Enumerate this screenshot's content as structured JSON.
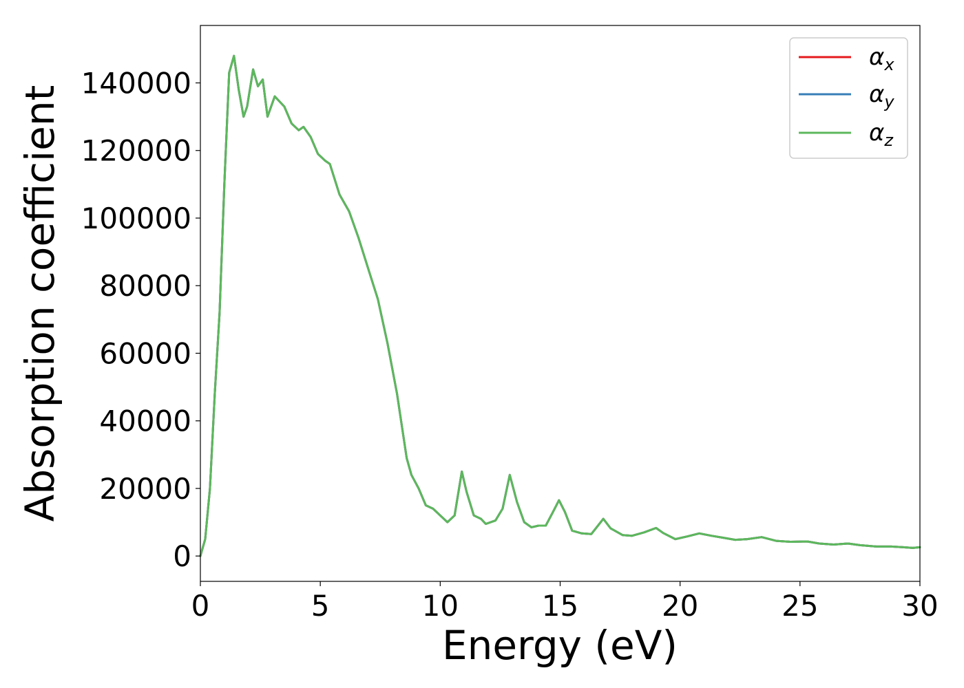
{
  "chart_data": {
    "type": "line",
    "title": "",
    "xlabel": "Energy (eV)",
    "ylabel": "Absorption coefficient",
    "xlim": [
      0,
      30
    ],
    "ylim": [
      -7500,
      157000
    ],
    "xticks": [
      0,
      5,
      10,
      15,
      20,
      25,
      30
    ],
    "xtick_labels": [
      "0",
      "5",
      "10",
      "15",
      "20",
      "25",
      "30"
    ],
    "yticks": [
      0,
      20000,
      40000,
      60000,
      80000,
      100000,
      120000,
      140000
    ],
    "ytick_labels": [
      "0",
      "20000",
      "40000",
      "60000",
      "80000",
      "100000",
      "120000",
      "140000"
    ],
    "grid": false,
    "legend_position": "top-right",
    "x": [
      0,
      0.2,
      0.4,
      0.6,
      0.8,
      1.0,
      1.2,
      1.4,
      1.6,
      1.8,
      1.95,
      2.2,
      2.4,
      2.6,
      2.8,
      3.1,
      3.5,
      3.8,
      4.1,
      4.3,
      4.6,
      4.9,
      5.2,
      5.4,
      5.8,
      6.2,
      6.6,
      7.0,
      7.4,
      7.8,
      8.2,
      8.6,
      8.8,
      9.1,
      9.4,
      9.7,
      10.0,
      10.3,
      10.6,
      10.9,
      11.1,
      11.4,
      11.7,
      11.9,
      12.3,
      12.6,
      12.9,
      13.2,
      13.5,
      13.8,
      14.1,
      14.4,
      14.7,
      14.95,
      15.2,
      15.5,
      15.9,
      16.3,
      16.8,
      17.1,
      17.6,
      18.0,
      18.5,
      19.0,
      19.3,
      19.8,
      20.3,
      20.8,
      21.3,
      21.8,
      22.3,
      22.8,
      23.4,
      24.0,
      24.6,
      25.3,
      25.8,
      26.4,
      27.0,
      27.5,
      28.2,
      28.8,
      29.3,
      29.7,
      30.0
    ],
    "series": [
      {
        "name": "αx",
        "color": "#e41a1c",
        "values": [
          0,
          5000,
          20000,
          48000,
          72000,
          110000,
          143000,
          148000,
          138000,
          130000,
          133000,
          144000,
          139000,
          141000,
          130000,
          136000,
          133000,
          128000,
          126000,
          127000,
          124000,
          119000,
          117000,
          116000,
          107000,
          102000,
          94000,
          85000,
          76000,
          63000,
          48000,
          29000,
          24000,
          20000,
          15000,
          14000,
          12000,
          10000,
          12000,
          25000,
          19000,
          12000,
          11000,
          9500,
          10500,
          14000,
          24000,
          16000,
          10000,
          8500,
          9000,
          9000,
          13000,
          16500,
          13000,
          7500,
          6700,
          6500,
          11000,
          8200,
          6200,
          6000,
          7000,
          8300,
          6800,
          5000,
          5800,
          6700,
          6000,
          5400,
          4800,
          5000,
          5600,
          4500,
          4200,
          4300,
          3700,
          3400,
          3700,
          3200,
          2800,
          2800,
          2600,
          2400,
          2600
        ]
      },
      {
        "name": "αy",
        "color": "#377eb8",
        "values": [
          0,
          5000,
          20000,
          48000,
          72000,
          110000,
          143000,
          148000,
          138000,
          130000,
          133000,
          144000,
          139000,
          141000,
          130000,
          136000,
          133000,
          128000,
          126000,
          127000,
          124000,
          119000,
          117000,
          116000,
          107000,
          102000,
          94000,
          85000,
          76000,
          63000,
          48000,
          29000,
          24000,
          20000,
          15000,
          14000,
          12000,
          10000,
          12000,
          25000,
          19000,
          12000,
          11000,
          9500,
          10500,
          14000,
          24000,
          16000,
          10000,
          8500,
          9000,
          9000,
          13000,
          16500,
          13000,
          7500,
          6700,
          6500,
          11000,
          8200,
          6200,
          6000,
          7000,
          8300,
          6800,
          5000,
          5800,
          6700,
          6000,
          5400,
          4800,
          5000,
          5600,
          4500,
          4200,
          4300,
          3700,
          3400,
          3700,
          3200,
          2800,
          2800,
          2600,
          2400,
          2600
        ]
      },
      {
        "name": "αz",
        "color": "#5cb85c",
        "values": [
          0,
          5000,
          20000,
          48000,
          72000,
          110000,
          143000,
          148000,
          138000,
          130000,
          133000,
          144000,
          139000,
          141000,
          130000,
          136000,
          133000,
          128000,
          126000,
          127000,
          124000,
          119000,
          117000,
          116000,
          107000,
          102000,
          94000,
          85000,
          76000,
          63000,
          48000,
          29000,
          24000,
          20000,
          15000,
          14000,
          12000,
          10000,
          12000,
          25000,
          19000,
          12000,
          11000,
          9500,
          10500,
          14000,
          24000,
          16000,
          10000,
          8500,
          9000,
          9000,
          13000,
          16500,
          13000,
          7500,
          6700,
          6500,
          11000,
          8200,
          6200,
          6000,
          7000,
          8300,
          6800,
          5000,
          5800,
          6700,
          6000,
          5400,
          4800,
          5000,
          5600,
          4500,
          4200,
          4300,
          3700,
          3400,
          3700,
          3200,
          2800,
          2800,
          2600,
          2400,
          2600
        ]
      }
    ],
    "legend": [
      {
        "symbol": "α",
        "subscript": "x",
        "color": "#e41a1c"
      },
      {
        "symbol": "α",
        "subscript": "y",
        "color": "#377eb8"
      },
      {
        "symbol": "α",
        "subscript": "z",
        "color": "#5cb85c"
      }
    ]
  }
}
